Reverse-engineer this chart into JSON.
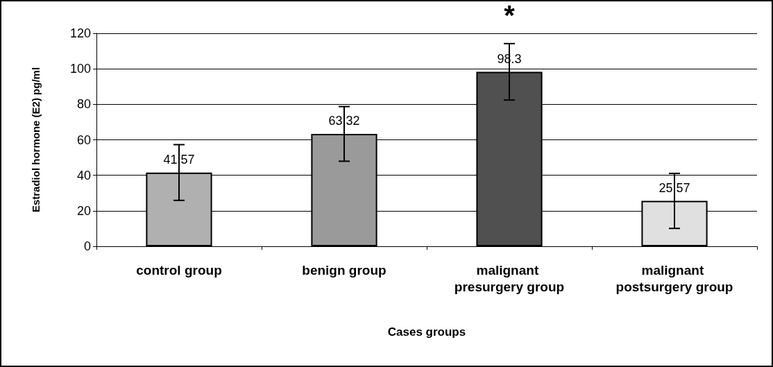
{
  "chart_data": {
    "type": "bar",
    "xlabel": "Cases groups",
    "ylabel": "Estradiol hormone (E2) pg/ml",
    "categories": [
      "control group",
      "benign group",
      "malignant presurgery group",
      "malignant postsurgery group"
    ],
    "values": [
      41.57,
      63.32,
      98.3,
      25.57
    ],
    "colors": [
      "#b0b0b0",
      "#9a9a9a",
      "#505050",
      "#e0e0e0"
    ],
    "errors": [
      15.7,
      15.4,
      15.9,
      15.5
    ],
    "data_labels": true,
    "annotations": [
      "*"
    ],
    "ylim": [
      0,
      120
    ],
    "yticks": [
      0,
      20,
      40,
      60,
      80,
      100,
      120
    ],
    "grid": "y"
  }
}
